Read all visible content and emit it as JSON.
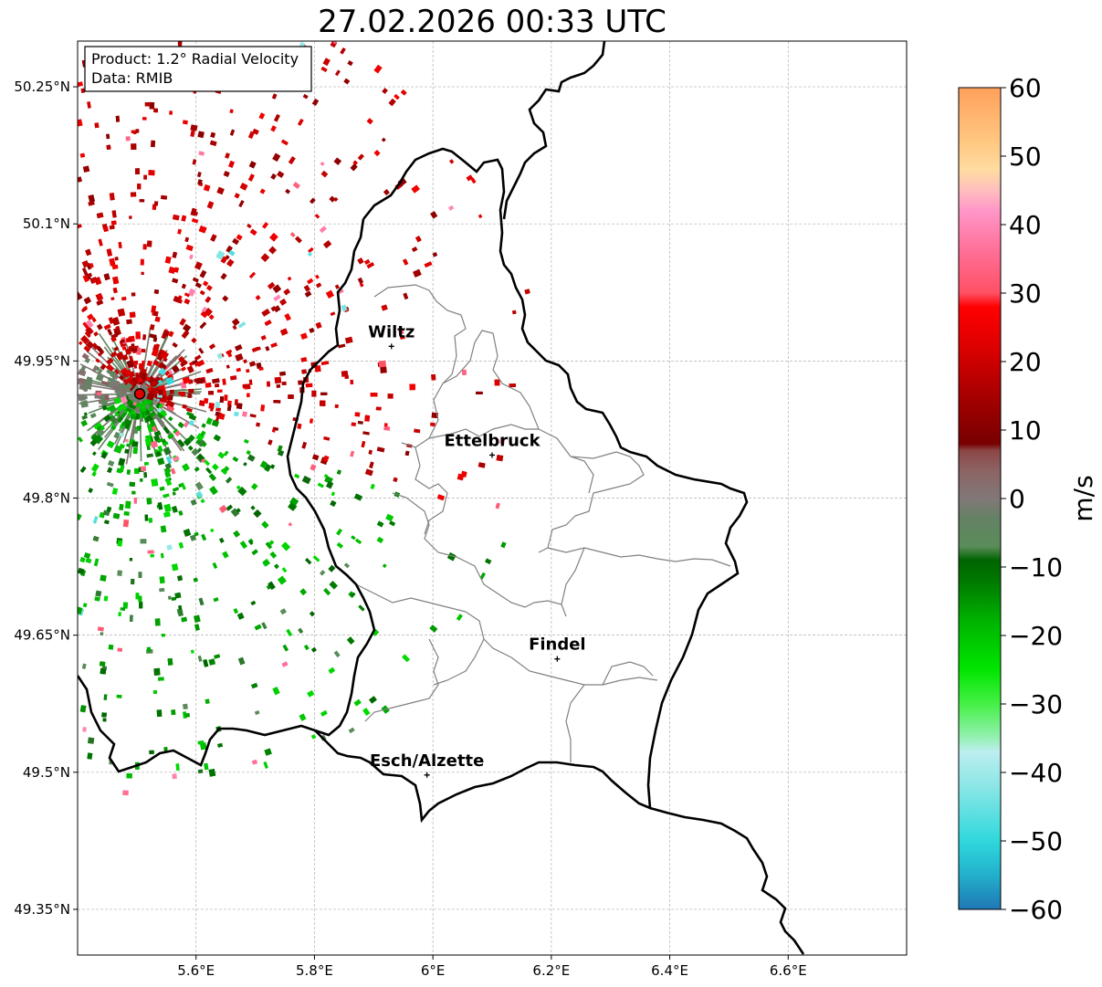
{
  "title": "27.02.2026 00:33 UTC",
  "info_box": {
    "line1": "Product: 1.2° Radial Velocity",
    "line2": "Data: RMIB"
  },
  "map": {
    "lon_range": [
      5.4,
      6.8
    ],
    "lat_range": [
      49.3,
      50.3
    ],
    "lat_ticks": [
      {
        "value": 50.25,
        "label": "50.25°N"
      },
      {
        "value": 50.1,
        "label": "50.1°N"
      },
      {
        "value": 49.95,
        "label": "49.95°N"
      },
      {
        "value": 49.8,
        "label": "49.8°N"
      },
      {
        "value": 49.65,
        "label": "49.65°N"
      },
      {
        "value": 49.5,
        "label": "49.5°N"
      },
      {
        "value": 49.35,
        "label": "49.35°N"
      }
    ],
    "lon_ticks": [
      {
        "value": 5.6,
        "label": "5.6°E"
      },
      {
        "value": 5.8,
        "label": "5.8°E"
      },
      {
        "value": 6.0,
        "label": "6°E"
      },
      {
        "value": 6.2,
        "label": "6.2°E"
      },
      {
        "value": 6.4,
        "label": "6.4°E"
      },
      {
        "value": 6.6,
        "label": "6.6°E"
      }
    ],
    "radar_site": {
      "lon": 5.505,
      "lat": 49.914
    },
    "cities": [
      {
        "name": "Wiltz",
        "lon": 5.93,
        "lat": 49.966
      },
      {
        "name": "Ettelbruck",
        "lon": 6.1,
        "lat": 49.847
      },
      {
        "name": "Findel",
        "lon": 6.21,
        "lat": 49.624
      },
      {
        "name": "Esch/Alzette",
        "lon": 5.99,
        "lat": 49.497
      }
    ]
  },
  "colorbar": {
    "label": "m/s",
    "range": [
      -60,
      60
    ],
    "ticks": [
      {
        "value": 60,
        "label": "60"
      },
      {
        "value": 50,
        "label": "50"
      },
      {
        "value": 40,
        "label": "40"
      },
      {
        "value": 30,
        "label": "30"
      },
      {
        "value": 20,
        "label": "20"
      },
      {
        "value": 10,
        "label": "10"
      },
      {
        "value": 0,
        "label": "0"
      },
      {
        "value": -10,
        "label": "−10"
      },
      {
        "value": -20,
        "label": "−20"
      },
      {
        "value": -30,
        "label": "−30"
      },
      {
        "value": -40,
        "label": "−40"
      },
      {
        "value": -50,
        "label": "−50"
      },
      {
        "value": -60,
        "label": "−60"
      }
    ],
    "stops": [
      {
        "value": -60,
        "color": "#1f77b4"
      },
      {
        "value": -55,
        "color": "#22b0cc"
      },
      {
        "value": -50,
        "color": "#2fd8dc"
      },
      {
        "value": -42,
        "color": "#8ce6e6"
      },
      {
        "value": -37,
        "color": "#bdeef0"
      },
      {
        "value": -35,
        "color": "#96f0b4"
      },
      {
        "value": -30,
        "color": "#46f046"
      },
      {
        "value": -25,
        "color": "#00e600"
      },
      {
        "value": -18,
        "color": "#00b400"
      },
      {
        "value": -12,
        "color": "#007800"
      },
      {
        "value": -9,
        "color": "#006400"
      },
      {
        "value": -7,
        "color": "#5a8c5a"
      },
      {
        "value": -3,
        "color": "#648264"
      },
      {
        "value": 0,
        "color": "#827878"
      },
      {
        "value": 4,
        "color": "#8c6464"
      },
      {
        "value": 7,
        "color": "#8c4646"
      },
      {
        "value": 8,
        "color": "#780000"
      },
      {
        "value": 14,
        "color": "#a00000"
      },
      {
        "value": 22,
        "color": "#dc0000"
      },
      {
        "value": 28,
        "color": "#ff0000"
      },
      {
        "value": 30,
        "color": "#ff5064"
      },
      {
        "value": 36,
        "color": "#ff6e96"
      },
      {
        "value": 42,
        "color": "#ff96c8"
      },
      {
        "value": 45,
        "color": "#ffbebe"
      },
      {
        "value": 48,
        "color": "#ffdca0"
      },
      {
        "value": 52,
        "color": "#ffc882"
      },
      {
        "value": 60,
        "color": "#ffa05a"
      }
    ]
  },
  "colors": {
    "border_national": "#000000",
    "border_canton": "#808080",
    "grid": "#b0b0b0",
    "radar_marker": "#e00000"
  }
}
